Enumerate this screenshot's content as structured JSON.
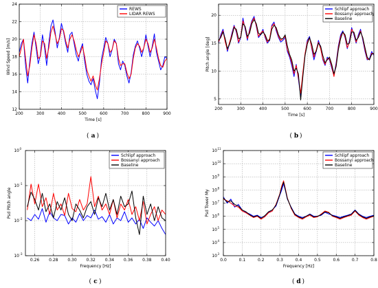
{
  "chart_data": [
    {
      "type": "line",
      "panel": "a",
      "caption_letter": "a",
      "xlabel": "Time [s]",
      "ylabel": "Wind Speed [m/s]",
      "xlim": [
        200,
        900
      ],
      "ylim": [
        12,
        24
      ],
      "xticks": [
        "200",
        "300",
        "400",
        "500",
        "600",
        "700",
        "800",
        "900"
      ],
      "yticks": [
        "12",
        "14",
        "16",
        "18",
        "20",
        "22",
        "24"
      ],
      "yscale": "linear",
      "grid": true,
      "legend_position": "top-right",
      "x": [
        200,
        210,
        220,
        230,
        240,
        250,
        260,
        270,
        280,
        290,
        300,
        310,
        320,
        330,
        340,
        350,
        360,
        370,
        380,
        390,
        400,
        410,
        420,
        430,
        440,
        450,
        460,
        470,
        480,
        490,
        500,
        510,
        520,
        530,
        540,
        550,
        560,
        570,
        580,
        590,
        600,
        610,
        620,
        630,
        640,
        650,
        660,
        670,
        680,
        690,
        700,
        710,
        720,
        730,
        740,
        750,
        760,
        770,
        780,
        790,
        800,
        810,
        820,
        830,
        840,
        850,
        860,
        870,
        880,
        890,
        900
      ],
      "series": [
        {
          "name": "REWS",
          "color": "#0000ff",
          "values": [
            18.5,
            19.5,
            20.0,
            17.0,
            15.0,
            17.5,
            19.5,
            20.8,
            19.0,
            17.2,
            18.2,
            20.5,
            19.0,
            17.0,
            19.5,
            21.5,
            22.2,
            20.8,
            19.0,
            20.2,
            21.8,
            20.8,
            19.5,
            18.5,
            20.5,
            20.8,
            19.5,
            18.2,
            17.5,
            18.8,
            19.5,
            17.5,
            16.0,
            15.2,
            14.8,
            15.5,
            14.2,
            13.2,
            15.0,
            17.8,
            19.0,
            20.2,
            19.5,
            18.0,
            18.8,
            20.0,
            19.5,
            17.2,
            16.5,
            17.5,
            17.0,
            15.8,
            15.0,
            16.2,
            18.2,
            19.2,
            19.8,
            19.0,
            18.0,
            19.0,
            20.5,
            19.2,
            18.0,
            19.2,
            20.6,
            18.5,
            17.5,
            16.5,
            17.0,
            18.0,
            17.8
          ]
        },
        {
          "name": "LIDAR REWS",
          "color": "#ff0000",
          "values": [
            18.0,
            19.0,
            20.0,
            17.8,
            15.8,
            17.0,
            19.0,
            20.5,
            19.5,
            17.8,
            18.0,
            19.8,
            19.5,
            17.8,
            19.0,
            20.8,
            21.5,
            20.5,
            19.5,
            20.0,
            21.2,
            21.0,
            19.8,
            19.0,
            20.0,
            20.5,
            19.8,
            18.8,
            18.0,
            18.5,
            19.2,
            18.0,
            16.5,
            15.8,
            15.2,
            15.8,
            14.8,
            14.2,
            15.5,
            17.2,
            18.5,
            19.8,
            19.5,
            18.5,
            18.8,
            19.8,
            19.5,
            17.8,
            17.0,
            17.2,
            17.2,
            16.2,
            15.5,
            16.0,
            17.8,
            19.0,
            19.5,
            19.2,
            18.5,
            19.0,
            20.0,
            19.5,
            18.5,
            19.0,
            20.0,
            19.0,
            17.8,
            17.0,
            16.8,
            17.5,
            17.8
          ]
        }
      ]
    },
    {
      "type": "line",
      "panel": "b",
      "caption_letter": "b",
      "xlabel": "Time [s]",
      "ylabel": "Pitch angle [deg]",
      "xlim": [
        200,
        900
      ],
      "ylim": [
        4,
        22
      ],
      "xticks": [
        "200",
        "300",
        "400",
        "500",
        "600",
        "700",
        "800",
        "900"
      ],
      "yticks": [
        "5",
        "10",
        "15",
        "20"
      ],
      "yscale": "linear",
      "grid": true,
      "legend_position": "top-right",
      "x": [
        200,
        210,
        220,
        230,
        240,
        250,
        260,
        270,
        280,
        290,
        300,
        310,
        320,
        330,
        340,
        350,
        360,
        370,
        380,
        390,
        400,
        410,
        420,
        430,
        440,
        450,
        460,
        470,
        480,
        490,
        500,
        510,
        520,
        530,
        540,
        550,
        560,
        570,
        580,
        590,
        600,
        610,
        620,
        630,
        640,
        650,
        660,
        670,
        680,
        690,
        700,
        710,
        720,
        730,
        740,
        750,
        760,
        770,
        780,
        790,
        800,
        810,
        820,
        830,
        840,
        850,
        860,
        870,
        880,
        890,
        900
      ],
      "series": [
        {
          "name": "Schlipf approach",
          "color": "#0000ff",
          "values": [
            15.0,
            16.5,
            17.5,
            15.5,
            13.5,
            15.0,
            16.8,
            18.2,
            17.0,
            15.0,
            16.0,
            19.5,
            17.5,
            15.5,
            17.5,
            19.0,
            19.8,
            18.0,
            16.0,
            16.5,
            17.5,
            16.0,
            15.0,
            15.5,
            18.2,
            18.8,
            17.2,
            16.0,
            15.2,
            15.5,
            16.0,
            13.5,
            12.5,
            11.0,
            9.0,
            11.2,
            8.5,
            5.5,
            9.5,
            13.0,
            15.5,
            16.2,
            14.0,
            12.0,
            13.5,
            15.5,
            14.2,
            12.0,
            11.0,
            12.5,
            12.0,
            10.5,
            9.2,
            11.5,
            14.5,
            16.5,
            17.2,
            16.0,
            14.0,
            15.5,
            17.8,
            16.5,
            15.0,
            16.5,
            17.5,
            15.5,
            13.5,
            12.0,
            12.2,
            13.5,
            12.8
          ]
        },
        {
          "name": "Bossanyi approach",
          "color": "#ff0000",
          "values": [
            15.2,
            16.2,
            17.2,
            15.2,
            13.8,
            15.2,
            16.5,
            18.0,
            17.2,
            15.2,
            16.2,
            19.0,
            17.8,
            15.8,
            17.2,
            18.8,
            19.5,
            18.2,
            16.2,
            16.8,
            17.2,
            16.2,
            15.2,
            15.8,
            18.0,
            18.5,
            17.5,
            16.2,
            15.5,
            15.8,
            16.2,
            13.8,
            12.8,
            11.5,
            9.5,
            11.0,
            8.8,
            6.0,
            9.8,
            13.2,
            15.2,
            16.0,
            14.2,
            12.5,
            13.8,
            15.2,
            14.0,
            12.2,
            11.2,
            12.2,
            12.2,
            10.8,
            9.0,
            11.2,
            14.2,
            16.2,
            17.0,
            16.2,
            14.2,
            15.2,
            17.5,
            16.8,
            15.2,
            16.2,
            17.2,
            15.8,
            13.8,
            12.2,
            12.0,
            13.2,
            13.0
          ]
        },
        {
          "name": "Baseline",
          "color": "#000000",
          "values": [
            15.5,
            16.0,
            17.0,
            15.8,
            14.0,
            14.8,
            16.2,
            17.8,
            17.5,
            15.8,
            16.0,
            18.5,
            18.0,
            16.2,
            16.8,
            18.5,
            19.2,
            18.5,
            16.8,
            16.5,
            17.0,
            16.5,
            15.5,
            15.5,
            17.5,
            18.2,
            17.8,
            16.5,
            15.8,
            15.8,
            16.5,
            14.5,
            13.0,
            12.0,
            10.0,
            10.5,
            9.5,
            4.8,
            9.0,
            12.8,
            14.8,
            16.0,
            14.8,
            13.0,
            13.5,
            15.0,
            14.5,
            12.8,
            11.5,
            12.0,
            12.5,
            11.2,
            9.5,
            10.8,
            13.8,
            15.8,
            17.0,
            16.5,
            14.8,
            15.0,
            17.0,
            17.0,
            15.5,
            16.0,
            17.0,
            16.0,
            14.2,
            12.5,
            12.0,
            13.0,
            13.2
          ]
        }
      ]
    },
    {
      "type": "line",
      "panel": "c",
      "caption_letter": "c",
      "xlabel": "Frequency [Hz]",
      "ylabel": "Psd Pitch angle",
      "xlim": [
        0.25,
        0.4
      ],
      "ylim_exponents": [
        -3,
        0
      ],
      "xticks": [
        "0.26",
        "0.28",
        "0.30",
        "0.32",
        "0.34",
        "0.36",
        "0.38",
        "0.40"
      ],
      "ytick_exponents": [
        "-3",
        "-2",
        "-1",
        "0"
      ],
      "yscale": "log",
      "grid": true,
      "legend_position": "top-right",
      "x": [
        0.252,
        0.256,
        0.26,
        0.264,
        0.268,
        0.272,
        0.276,
        0.28,
        0.284,
        0.288,
        0.292,
        0.296,
        0.3,
        0.304,
        0.308,
        0.312,
        0.316,
        0.32,
        0.324,
        0.328,
        0.332,
        0.336,
        0.34,
        0.344,
        0.348,
        0.352,
        0.356,
        0.36,
        0.364,
        0.368,
        0.372,
        0.376,
        0.38,
        0.384,
        0.388,
        0.392,
        0.396,
        0.4
      ],
      "series": [
        {
          "name": "Schlipf approach",
          "color": "#0000ff",
          "values": [
            0.012,
            0.01,
            0.015,
            0.011,
            0.022,
            0.009,
            0.018,
            0.012,
            0.01,
            0.015,
            0.014,
            0.008,
            0.012,
            0.009,
            0.016,
            0.01,
            0.014,
            0.012,
            0.02,
            0.011,
            0.013,
            0.009,
            0.015,
            0.008,
            0.012,
            0.01,
            0.018,
            0.009,
            0.012,
            0.008,
            0.011,
            0.006,
            0.012,
            0.009,
            0.007,
            0.01,
            0.006,
            0.004
          ]
        },
        {
          "name": "Bossanyi approach",
          "color": "#ff0000",
          "values": [
            0.02,
            0.11,
            0.03,
            0.11,
            0.025,
            0.045,
            0.015,
            0.06,
            0.02,
            0.03,
            0.014,
            0.06,
            0.022,
            0.018,
            0.04,
            0.02,
            0.03,
            0.18,
            0.025,
            0.05,
            0.02,
            0.03,
            0.015,
            0.04,
            0.012,
            0.03,
            0.02,
            0.04,
            0.015,
            0.025,
            0.01,
            0.035,
            0.008,
            0.015,
            0.025,
            0.01,
            0.02,
            0.015
          ]
        },
        {
          "name": "Baseline",
          "color": "#000000",
          "values": [
            0.025,
            0.065,
            0.04,
            0.02,
            0.06,
            0.018,
            0.03,
            0.012,
            0.035,
            0.02,
            0.045,
            0.015,
            0.01,
            0.03,
            0.02,
            0.012,
            0.025,
            0.035,
            0.015,
            0.045,
            0.025,
            0.06,
            0.02,
            0.04,
            0.015,
            0.05,
            0.025,
            0.03,
            0.07,
            0.012,
            0.004,
            0.05,
            0.015,
            0.03,
            0.01,
            0.025,
            0.012,
            0.01
          ]
        }
      ]
    },
    {
      "type": "line",
      "panel": "d",
      "caption_letter": "d",
      "xlabel": "Frequency [Hz]",
      "ylabel": "Psd Tower My",
      "xlim": [
        0.0,
        0.8
      ],
      "ylim_exponents": [
        3,
        11
      ],
      "xticks": [
        "0.0",
        "0.1",
        "0.2",
        "0.3",
        "0.4",
        "0.5",
        "0.6",
        "0.7",
        "0.8"
      ],
      "ytick_exponents": [
        "3",
        "4",
        "5",
        "6",
        "7",
        "8",
        "9",
        "10",
        "11"
      ],
      "yscale": "log",
      "grid": true,
      "legend_position": "top-right",
      "x": [
        0.0,
        0.02,
        0.04,
        0.06,
        0.08,
        0.1,
        0.12,
        0.14,
        0.16,
        0.18,
        0.2,
        0.22,
        0.24,
        0.26,
        0.28,
        0.3,
        0.31,
        0.32,
        0.33,
        0.34,
        0.36,
        0.38,
        0.4,
        0.42,
        0.44,
        0.46,
        0.48,
        0.5,
        0.52,
        0.54,
        0.56,
        0.58,
        0.6,
        0.62,
        0.64,
        0.66,
        0.68,
        0.7,
        0.72,
        0.74,
        0.76,
        0.78,
        0.8
      ],
      "series": [
        {
          "name": "Schlipf approach",
          "color": "#0000ff",
          "values": [
            30000000.0,
            10000000.0,
            20000000.0,
            5000000.0,
            8000000.0,
            3000000.0,
            2000000.0,
            1500000.0,
            1000000.0,
            1200000.0,
            800000.0,
            1000000.0,
            2000000.0,
            3000000.0,
            6000000.0,
            40000000.0,
            100000000.0,
            300000000.0,
            90000000.0,
            20000000.0,
            5000000.0,
            1500000.0,
            1000000.0,
            800000.0,
            1000000.0,
            1500000.0,
            1000000.0,
            1000000.0,
            1200000.0,
            2000000.0,
            1500000.0,
            1200000.0,
            1000000.0,
            800000.0,
            1000000.0,
            1200000.0,
            1500000.0,
            3000000.0,
            1500000.0,
            1000000.0,
            800000.0,
            1000000.0,
            1200000.0
          ]
        },
        {
          "name": "Bossanyi approach",
          "color": "#ff0000",
          "values": [
            20000000.0,
            15000000.0,
            10000000.0,
            6000000.0,
            5000000.0,
            2500000.0,
            1800000.0,
            1200000.0,
            800000.0,
            1000000.0,
            600000.0,
            900000.0,
            1800000.0,
            2500000.0,
            8000000.0,
            50000000.0,
            200000000.0,
            500000000.0,
            120000000.0,
            25000000.0,
            4000000.0,
            1200000.0,
            800000.0,
            600000.0,
            900000.0,
            1200000.0,
            800000.0,
            900000.0,
            1500000.0,
            2500000.0,
            2000000.0,
            1000000.0,
            800000.0,
            600000.0,
            800000.0,
            1000000.0,
            1200000.0,
            2500000.0,
            1200000.0,
            800000.0,
            600000.0,
            800000.0,
            1000000.0
          ]
        },
        {
          "name": "Baseline",
          "color": "#000000",
          "values": [
            25000000.0,
            12000000.0,
            15000000.0,
            8000000.0,
            6000000.0,
            3000000.0,
            2200000.0,
            1300000.0,
            900000.0,
            1100000.0,
            700000.0,
            1100000.0,
            2200000.0,
            3000000.0,
            7000000.0,
            45000000.0,
            150000000.0,
            400000000.0,
            100000000.0,
            22000000.0,
            4500000.0,
            1400000.0,
            900000.0,
            700000.0,
            1000000.0,
            1400000.0,
            900000.0,
            1000000.0,
            1300000.0,
            2200000.0,
            1800000.0,
            1100000.0,
            900000.0,
            700000.0,
            900000.0,
            1100000.0,
            1400000.0,
            2800000.0,
            1400000.0,
            900000.0,
            700000.0,
            900000.0,
            1100000.0
          ]
        }
      ]
    }
  ]
}
